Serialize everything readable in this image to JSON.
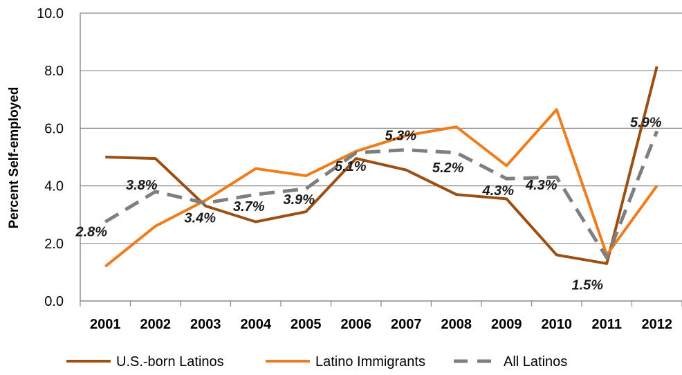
{
  "chart_data": {
    "type": "line",
    "title": "",
    "xlabel": "",
    "ylabel": "Percent Self-employed",
    "categories": [
      "2001",
      "2002",
      "2003",
      "2004",
      "2005",
      "2006",
      "2007",
      "2008",
      "2009",
      "2010",
      "2011",
      "2012"
    ],
    "ylim": [
      0,
      10
    ],
    "yticks": [
      "0.0",
      "2.0",
      "4.0",
      "6.0",
      "8.0",
      "10.0"
    ],
    "grid": true,
    "legend_position": "bottom",
    "series": [
      {
        "name": "U.S.-born Latinos",
        "color": "#9c4f12",
        "dash": "solid",
        "values": [
          5.0,
          4.95,
          3.3,
          2.75,
          3.1,
          4.95,
          4.55,
          3.7,
          3.55,
          1.6,
          1.3,
          8.15
        ]
      },
      {
        "name": "Latino Immigrants",
        "color": "#ed7d1d",
        "dash": "solid",
        "values": [
          1.2,
          2.6,
          3.5,
          4.6,
          4.35,
          5.2,
          5.75,
          6.05,
          4.7,
          6.65,
          1.6,
          4.0
        ]
      },
      {
        "name": "All Latinos",
        "color": "#7f7f7f",
        "dash": "dashed",
        "values": [
          2.75,
          3.8,
          3.4,
          3.7,
          3.9,
          5.15,
          5.25,
          5.15,
          4.25,
          4.3,
          1.5,
          5.9
        ]
      }
    ],
    "data_labels": [
      "2.8%",
      "3.8%",
      "3.4%",
      "3.7%",
      "3.9%",
      "5.1%",
      "5.3%",
      "5.2%",
      "4.3%",
      "4.3%",
      "1.5%",
      "5.9%"
    ]
  }
}
